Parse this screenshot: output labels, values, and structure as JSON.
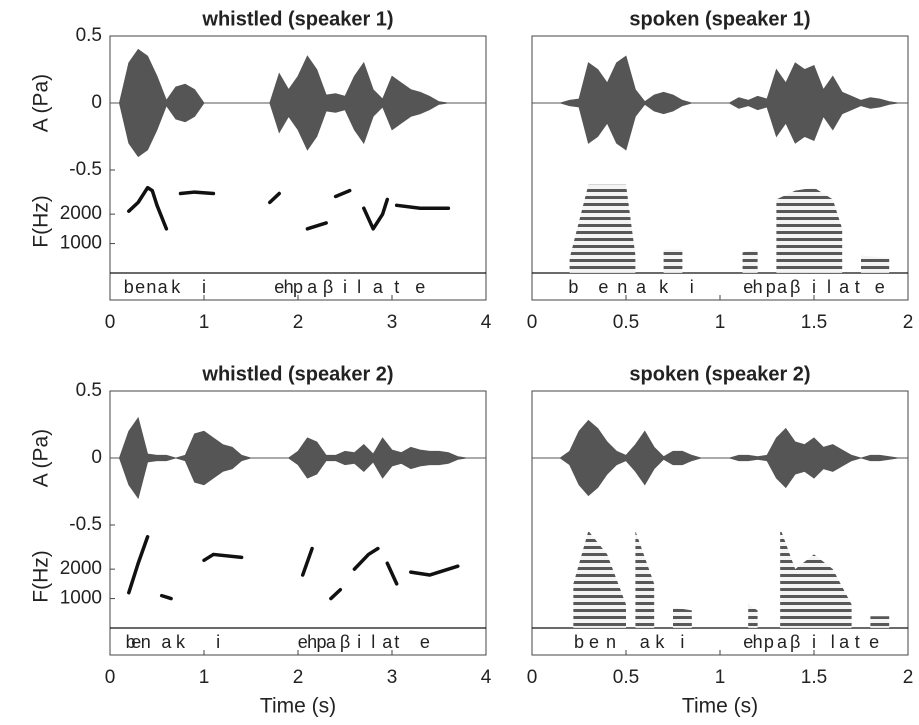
{
  "chart_data": [
    {
      "type": "waveform",
      "title": "whistled (speaker 1)",
      "ylabel": "A (Pa)",
      "flabel": "F(Hz)",
      "xlim": [
        0,
        4
      ],
      "xticks": [
        0,
        1,
        2,
        3,
        4
      ],
      "ylim": [
        -0.5,
        0.5
      ],
      "yticks": [
        -0.5,
        0,
        0.5
      ],
      "flim": [
        0,
        3500
      ],
      "fticks": [
        1000,
        2000
      ],
      "color": "#555555",
      "trace_color": "#111111",
      "waveform": {
        "x": [
          0,
          0.1,
          0.2,
          0.3,
          0.4,
          0.5,
          0.6,
          0.7,
          0.8,
          0.9,
          1,
          1.1,
          1.2,
          1.3,
          1.4,
          1.5,
          1.6,
          1.7,
          1.8,
          1.9,
          2,
          2.1,
          2.2,
          2.3,
          2.4,
          2.5,
          2.6,
          2.7,
          2.8,
          2.9,
          3,
          3.1,
          3.2,
          3.3,
          3.4,
          3.5,
          3.6,
          3.7,
          3.8,
          3.9,
          4
        ],
        "values": [
          0,
          0,
          0.3,
          0.4,
          0.35,
          0.2,
          0.02,
          0.12,
          0.14,
          0.1,
          0,
          0,
          0,
          0,
          0,
          0,
          0,
          0,
          0.22,
          0.1,
          0.2,
          0.35,
          0.25,
          0.06,
          0.07,
          0.05,
          0.2,
          0.3,
          0.1,
          0.03,
          0.2,
          0.15,
          0.1,
          0.08,
          0.05,
          0.01,
          0,
          0,
          0,
          0,
          0
        ]
      },
      "pitch": {
        "x": [
          0.2,
          0.3,
          0.4,
          0.45,
          0.5,
          0.6,
          null,
          0.75,
          0.9,
          1.1,
          null,
          1.7,
          1.8,
          null,
          2.1,
          2.3,
          null,
          2.4,
          2.55,
          null,
          2.7,
          2.8,
          2.9,
          2.95,
          null,
          3.05,
          3.3,
          3.6
        ],
        "values": [
          2100,
          2400,
          2900,
          2800,
          2300,
          1500,
          null,
          2700,
          2750,
          2700,
          null,
          2400,
          2700,
          null,
          1500,
          1700,
          null,
          2600,
          2800,
          null,
          2200,
          1500,
          2000,
          2500,
          null,
          2300,
          2200,
          2200
        ]
      },
      "phonemes": {
        "labels": [
          "b",
          "e",
          "n",
          "a",
          "k",
          "i",
          "e",
          "h",
          "p",
          "a",
          "β",
          "i",
          "l",
          "a",
          "t",
          "e"
        ],
        "x": [
          0.2,
          0.32,
          0.44,
          0.56,
          0.7,
          1.0,
          1.8,
          1.9,
          2.0,
          2.15,
          2.32,
          2.5,
          2.65,
          2.85,
          3.05,
          3.3
        ]
      }
    },
    {
      "type": "waveform",
      "title": "spoken (speaker 1)",
      "xlim": [
        0,
        2
      ],
      "xticks": [
        0,
        0.5,
        1,
        1.5,
        2
      ],
      "ylim": [
        -0.5,
        0.5
      ],
      "flim": [
        0,
        3500
      ],
      "color": "#555555",
      "trace_color": "#222222",
      "waveform": {
        "x": [
          0,
          0.05,
          0.1,
          0.15,
          0.2,
          0.25,
          0.3,
          0.35,
          0.4,
          0.45,
          0.5,
          0.55,
          0.6,
          0.65,
          0.7,
          0.75,
          0.8,
          0.85,
          0.9,
          0.95,
          1,
          1.05,
          1.1,
          1.15,
          1.2,
          1.25,
          1.3,
          1.35,
          1.4,
          1.45,
          1.5,
          1.55,
          1.6,
          1.65,
          1.7,
          1.75,
          1.8,
          1.85,
          1.9,
          1.95,
          2
        ],
        "values": [
          0,
          0,
          0,
          0,
          0.02,
          0.03,
          0.3,
          0.25,
          0.15,
          0.3,
          0.35,
          0.1,
          0.01,
          0.06,
          0.08,
          0.06,
          0.02,
          0,
          0,
          0,
          0,
          0,
          0.04,
          0.02,
          0.05,
          0.03,
          0.25,
          0.15,
          0.3,
          0.25,
          0.28,
          0.1,
          0.2,
          0.08,
          0.05,
          0.02,
          0.04,
          0.03,
          0.01,
          0,
          0
        ]
      },
      "spectrum": {
        "x": [
          0.2,
          0.3,
          0.4,
          0.5,
          0.55,
          null,
          0.7,
          0.8,
          null,
          1.12,
          1.2,
          null,
          1.3,
          1.4,
          1.5,
          1.6,
          1.65,
          null,
          1.75,
          1.9
        ],
        "values": [
          500,
          3000,
          3000,
          3000,
          600,
          null,
          800,
          800,
          null,
          700,
          800,
          null,
          2500,
          2800,
          2900,
          2500,
          1500,
          null,
          600,
          500
        ]
      },
      "phonemes": {
        "labels": [
          "b",
          "e",
          "n",
          "a",
          "k",
          "i",
          "e",
          "h",
          "p",
          "a",
          "β",
          "i",
          "l",
          "a",
          "t",
          "e"
        ],
        "x": [
          0.22,
          0.38,
          0.48,
          0.58,
          0.7,
          0.85,
          1.15,
          1.2,
          1.27,
          1.33,
          1.4,
          1.5,
          1.58,
          1.66,
          1.73,
          1.85
        ]
      }
    },
    {
      "type": "waveform",
      "title": "whistled (speaker 2)",
      "ylabel": "A (Pa)",
      "flabel": "F(Hz)",
      "xlabel": "Time (s)",
      "xlim": [
        0,
        4
      ],
      "xticks": [
        0,
        1,
        2,
        3,
        4
      ],
      "ylim": [
        -0.5,
        0.5
      ],
      "yticks": [
        -0.5,
        0,
        0.5
      ],
      "flim": [
        0,
        3500
      ],
      "fticks": [
        1000,
        2000
      ],
      "color": "#555555",
      "trace_color": "#111111",
      "waveform": {
        "x": [
          0,
          0.1,
          0.2,
          0.3,
          0.4,
          0.5,
          0.6,
          0.7,
          0.8,
          0.9,
          1,
          1.1,
          1.2,
          1.3,
          1.4,
          1.5,
          1.6,
          1.7,
          1.8,
          1.9,
          2,
          2.1,
          2.2,
          2.3,
          2.4,
          2.5,
          2.6,
          2.7,
          2.8,
          2.9,
          3,
          3.1,
          3.2,
          3.3,
          3.4,
          3.5,
          3.6,
          3.7,
          3.8,
          3.9,
          4
        ],
        "values": [
          0,
          0,
          0.2,
          0.3,
          0.03,
          0.02,
          0.02,
          0,
          0.02,
          0.18,
          0.2,
          0.15,
          0.1,
          0.08,
          0.02,
          0,
          0,
          0,
          0,
          0,
          0.05,
          0.15,
          0.12,
          0.02,
          0.02,
          0.05,
          0.04,
          0.1,
          0.03,
          0.15,
          0.06,
          0.04,
          0.08,
          0.06,
          0.05,
          0.05,
          0.04,
          0.01,
          0,
          0,
          0
        ]
      },
      "pitch": {
        "x": [
          0.2,
          0.3,
          0.4,
          null,
          0.55,
          0.65,
          null,
          1.0,
          1.1,
          1.4,
          null,
          2.05,
          2.15,
          null,
          2.35,
          2.45,
          null,
          2.6,
          2.75,
          2.85,
          null,
          2.95,
          3.05,
          null,
          3.2,
          3.4,
          3.7
        ],
        "values": [
          1200,
          2200,
          3100,
          null,
          1100,
          1000,
          null,
          2300,
          2500,
          2400,
          null,
          1800,
          2700,
          null,
          1000,
          1300,
          null,
          2000,
          2500,
          2700,
          null,
          2200,
          1500,
          null,
          1900,
          1800,
          2100
        ]
      },
      "phonemes": {
        "labels": [
          "b",
          "e",
          "n",
          "a",
          "k",
          "i",
          "e",
          "h",
          "p",
          "a",
          "β",
          "i",
          "l",
          "a",
          "t",
          "e"
        ],
        "x": [
          0.22,
          0.28,
          0.38,
          0.6,
          0.75,
          1.15,
          2.05,
          2.15,
          2.25,
          2.35,
          2.5,
          2.65,
          2.8,
          2.95,
          3.05,
          3.35
        ]
      }
    },
    {
      "type": "waveform",
      "title": "spoken (speaker 2)",
      "xlabel": "Time (s)",
      "xlim": [
        0,
        2
      ],
      "xticks": [
        0,
        0.5,
        1,
        1.5,
        2
      ],
      "ylim": [
        -0.5,
        0.5
      ],
      "flim": [
        0,
        3500
      ],
      "color": "#555555",
      "trace_color": "#222222",
      "waveform": {
        "x": [
          0,
          0.05,
          0.1,
          0.15,
          0.2,
          0.25,
          0.3,
          0.35,
          0.4,
          0.45,
          0.5,
          0.55,
          0.6,
          0.65,
          0.7,
          0.75,
          0.8,
          0.85,
          0.9,
          0.95,
          1,
          1.05,
          1.1,
          1.15,
          1.2,
          1.25,
          1.3,
          1.35,
          1.4,
          1.45,
          1.5,
          1.55,
          1.6,
          1.65,
          1.7,
          1.75,
          1.8,
          1.85,
          1.9,
          1.95,
          2
        ],
        "values": [
          0,
          0,
          0,
          0,
          0.05,
          0.2,
          0.28,
          0.22,
          0.12,
          0.05,
          0.02,
          0.1,
          0.2,
          0.08,
          0.01,
          0.05,
          0.05,
          0.02,
          0,
          0,
          0,
          0,
          0.02,
          0.02,
          0.01,
          0.02,
          0.15,
          0.22,
          0.12,
          0.1,
          0.15,
          0.08,
          0.1,
          0.06,
          0.02,
          0,
          0.02,
          0.02,
          0.01,
          0,
          0
        ]
      },
      "spectrum": {
        "x": [
          0.22,
          0.3,
          0.4,
          0.5,
          null,
          0.55,
          0.65,
          null,
          0.75,
          0.85,
          null,
          1.15,
          1.2,
          null,
          1.32,
          1.4,
          1.5,
          1.6,
          1.7,
          null,
          1.8,
          1.9
        ],
        "values": [
          1500,
          3300,
          2500,
          800,
          null,
          3300,
          1500,
          null,
          700,
          600,
          null,
          800,
          600,
          null,
          3400,
          2000,
          2500,
          2000,
          800,
          null,
          400,
          400
        ]
      },
      "phonemes": {
        "labels": [
          "b",
          "e",
          "n",
          "a",
          "k",
          "i",
          "e",
          "h",
          "p",
          "a",
          "β",
          "i",
          "l",
          "a",
          "t",
          "e"
        ],
        "x": [
          0.25,
          0.33,
          0.42,
          0.6,
          0.68,
          0.8,
          1.15,
          1.2,
          1.26,
          1.33,
          1.4,
          1.5,
          1.6,
          1.66,
          1.73,
          1.82
        ]
      }
    }
  ]
}
